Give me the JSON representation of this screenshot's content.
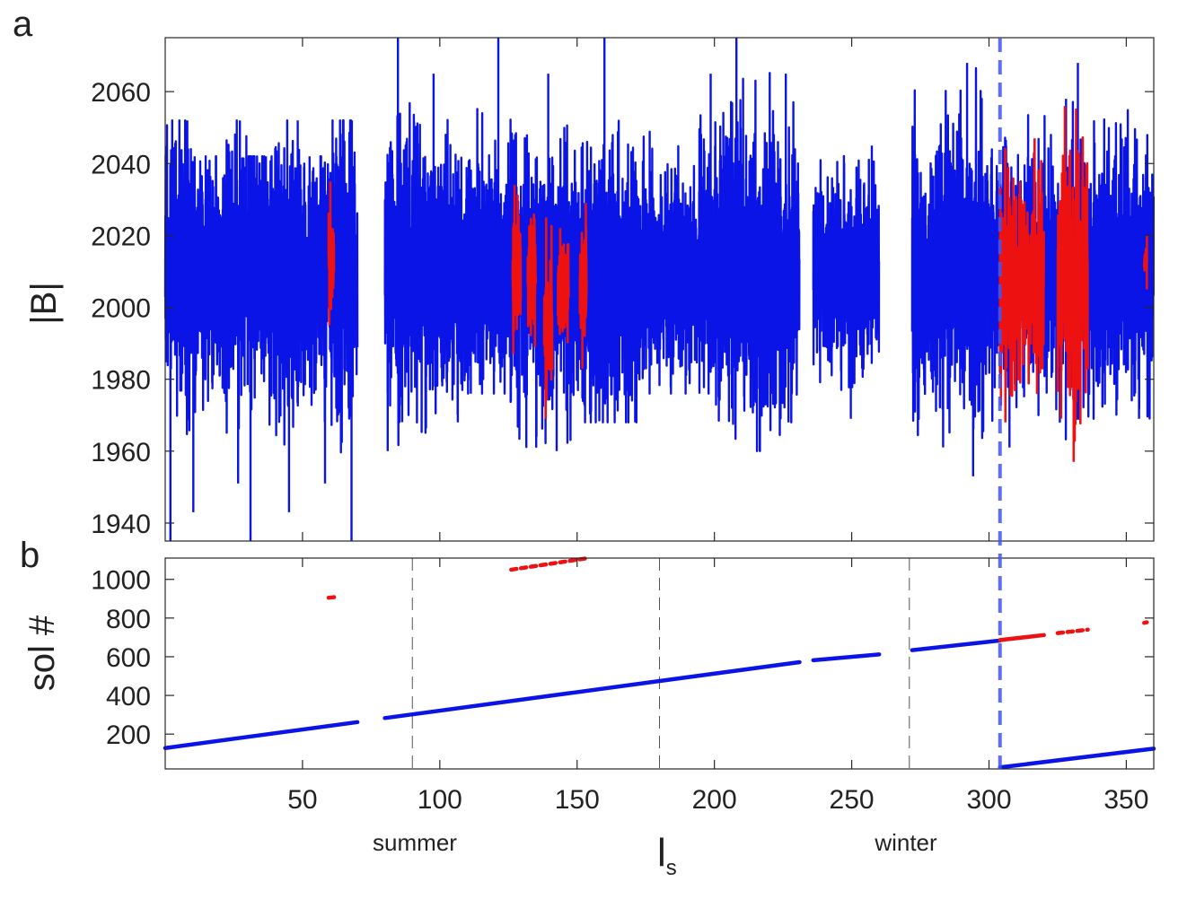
{
  "figure": {
    "panel_labels": [
      "a",
      "b"
    ],
    "season_labels": [
      "summer",
      "winter"
    ]
  },
  "colors": {
    "normal": "#0a14e6",
    "highlight": "#ee1111",
    "marker_line": "#4455ee",
    "season_line": "#555555",
    "axis": "#262626"
  },
  "chart_data": [
    {
      "type": "line",
      "panel": "a",
      "ylabel": "|B|",
      "xlim": [
        0,
        360
      ],
      "ylim": [
        1935,
        2075
      ],
      "yticks": [
        1940,
        1960,
        1980,
        2000,
        2020,
        2040,
        2060
      ],
      "grid": false,
      "data_gaps_ls": [
        [
          71,
          80
        ],
        [
          232,
          236
        ],
        [
          261,
          272
        ]
      ],
      "series": [
        {
          "color_key": "normal",
          "segments": [
            {
              "x": [
                0,
                10,
                20,
                30,
                40,
                50,
                60,
                70
              ],
              "y_mean": 2010,
              "y_min": 1935,
              "y_max": 2052
            },
            {
              "x": [
                80,
                95,
                110,
                125,
                150,
                175,
                200,
                225,
                231
              ],
              "y_mean": 2010,
              "y_min": 1960,
              "y_max": 2075
            },
            {
              "x": [
                236,
                260
              ],
              "y_mean": 2010,
              "y_min": 1969,
              "y_max": 2045
            },
            {
              "x": [
                272,
                300,
                330,
                360
              ],
              "y_mean": 2010,
              "y_min": 1953,
              "y_max": 2068
            }
          ]
        },
        {
          "color_key": "highlight",
          "segments": [
            {
              "x": [
                59.5,
                61.5
              ],
              "y_min": 1995,
              "y_max": 2035
            },
            {
              "x": [
                126.5,
                129.5
              ],
              "y_min": 1987,
              "y_max": 2034
            },
            {
              "x": [
                132,
                135
              ],
              "y_min": 1989,
              "y_max": 2026
            },
            {
              "x": [
                138,
                141
              ],
              "y_min": 1969,
              "y_max": 2025
            },
            {
              "x": [
                143,
                147
              ],
              "y_min": 1990,
              "y_max": 2022
            },
            {
              "x": [
                151,
                153.5
              ],
              "y_min": 1983,
              "y_max": 2029
            },
            {
              "x": [
                304,
                320
              ],
              "y_min": 1968,
              "y_max": 2047
            },
            {
              "x": [
                325,
                336
              ],
              "y_min": 1957,
              "y_max": 2056
            },
            {
              "x": [
                356.5,
                357.5
              ],
              "y_min": 2005,
              "y_max": 2020
            }
          ]
        }
      ],
      "vertical_markers": [
        {
          "x": 304,
          "style": "dashed"
        }
      ]
    },
    {
      "type": "scatter",
      "panel": "b",
      "ylabel": "sol #",
      "xlabel": "l",
      "xlabel_subscript": "s",
      "xlim": [
        0,
        360
      ],
      "ylim": [
        20,
        1110
      ],
      "xticks": [
        50,
        100,
        150,
        200,
        250,
        300,
        350
      ],
      "yticks": [
        200,
        400,
        600,
        800,
        1000
      ],
      "grid": false,
      "season_lines_x": [
        90,
        180,
        271
      ],
      "vertical_markers": [
        {
          "x": 304,
          "style": "dashed"
        }
      ],
      "series": [
        {
          "color_key": "normal",
          "segments": [
            {
              "x": [
                0,
                70
              ],
              "y": [
                128,
                262
              ]
            },
            {
              "x": [
                80,
                231
              ],
              "y": [
                283,
                572
              ]
            },
            {
              "x": [
                236,
                260
              ],
              "y": [
                582,
                612
              ]
            },
            {
              "x": [
                272,
                304
              ],
              "y": [
                634,
                684
              ]
            },
            {
              "x": [
                304,
                360
              ],
              "y": [
                28,
                125
              ]
            }
          ]
        },
        {
          "color_key": "highlight",
          "segments": [
            {
              "x": [
                59.5,
                61.5
              ],
              "y": [
                905,
                908
              ]
            },
            {
              "x": [
                126,
                154
              ],
              "y": [
                1050,
                1110
              ]
            },
            {
              "x": [
                304,
                320
              ],
              "y": [
                686,
                712
              ]
            },
            {
              "x": [
                325,
                336
              ],
              "y": [
                722,
                740
              ]
            },
            {
              "x": [
                356.5,
                357.5
              ],
              "y": [
                775,
                778
              ]
            }
          ]
        }
      ]
    }
  ]
}
